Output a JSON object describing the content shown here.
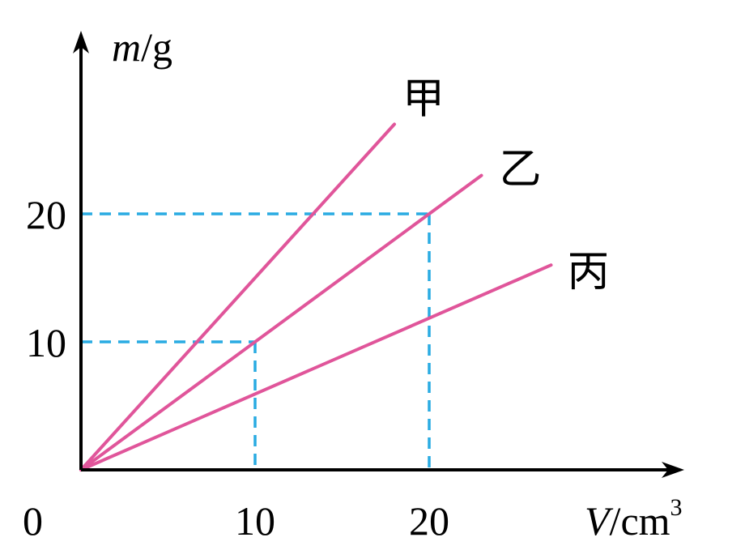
{
  "chart_data": {
    "type": "line",
    "x_axis": {
      "var": "V",
      "unit": "/cm",
      "sup": "3"
    },
    "y_axis": {
      "var": "m",
      "unit": "/g"
    },
    "xlim": [
      0,
      27
    ],
    "ylim": [
      0,
      31
    ],
    "origin_label": "0",
    "x_ticks": [
      {
        "value": 10,
        "label": "10"
      },
      {
        "value": 20,
        "label": "20"
      }
    ],
    "y_ticks": [
      {
        "value": 10,
        "label": "10"
      },
      {
        "value": 20,
        "label": "20"
      }
    ],
    "series": [
      {
        "name": "甲",
        "x": [
          0,
          18
        ],
        "y": [
          0,
          27
        ]
      },
      {
        "name": "乙",
        "x": [
          0,
          23
        ],
        "y": [
          0,
          23
        ]
      },
      {
        "name": "丙",
        "x": [
          0,
          27
        ],
        "y": [
          0,
          16
        ]
      }
    ],
    "guides": [
      {
        "x": 10,
        "y": 10
      },
      {
        "x": 20,
        "y": 20
      }
    ],
    "colors": {
      "series": "#e0559a",
      "guides": "#29abe2",
      "axes": "#000000"
    },
    "grid": false,
    "legend": "inline labels at line ends"
  }
}
